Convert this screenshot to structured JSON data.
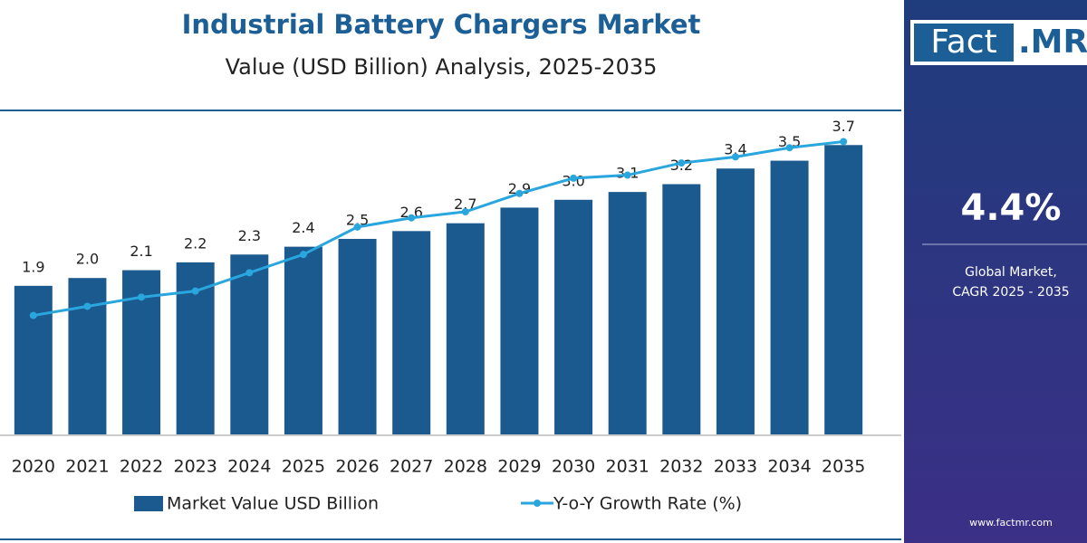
{
  "chart_data": {
    "type": "bar",
    "title": "Industrial Battery Chargers Market",
    "subtitle": "Value (USD Billion) Analysis, 2025-2035",
    "categories": [
      "2020",
      "2021",
      "2022",
      "2023",
      "2024",
      "2025",
      "2026",
      "2027",
      "2028",
      "2029",
      "2030",
      "2031",
      "2032",
      "2033",
      "2034",
      "2035"
    ],
    "ylim": [
      0,
      3.9
    ],
    "y2lim": [
      0,
      10
    ],
    "series": [
      {
        "name": "Market Value USD Billion",
        "type": "bar",
        "color": "#1b5a8e",
        "values": [
          1.9,
          2.0,
          2.1,
          2.2,
          2.3,
          2.4,
          2.5,
          2.6,
          2.7,
          2.9,
          3.0,
          3.1,
          3.2,
          3.4,
          3.5,
          3.7
        ],
        "value_labels": [
          "1.9",
          "2.0",
          "2.1",
          "2.2",
          "2.3",
          "2.4",
          "2.5",
          "2.6",
          "2.7",
          "2.9",
          "3.0",
          "3.1",
          "3.2",
          "3.4",
          "3.5",
          "3.7"
        ]
      },
      {
        "name": "Y-o-Y Growth Rate (%)",
        "type": "line",
        "axis": "y2",
        "color": "#2aa6de",
        "values": [
          3.9,
          4.2,
          4.5,
          4.7,
          5.3,
          5.9,
          6.8,
          7.1,
          7.3,
          7.9,
          8.4,
          8.5,
          8.9,
          9.1,
          9.4,
          9.6
        ]
      }
    ],
    "side_panel": {
      "logo": [
        "Fact",
        ".MR"
      ],
      "cagr": "4.4%",
      "cagr_label": [
        "Global Market,",
        "CAGR 2025 - 2035"
      ],
      "website": "www.factmr.com"
    }
  }
}
